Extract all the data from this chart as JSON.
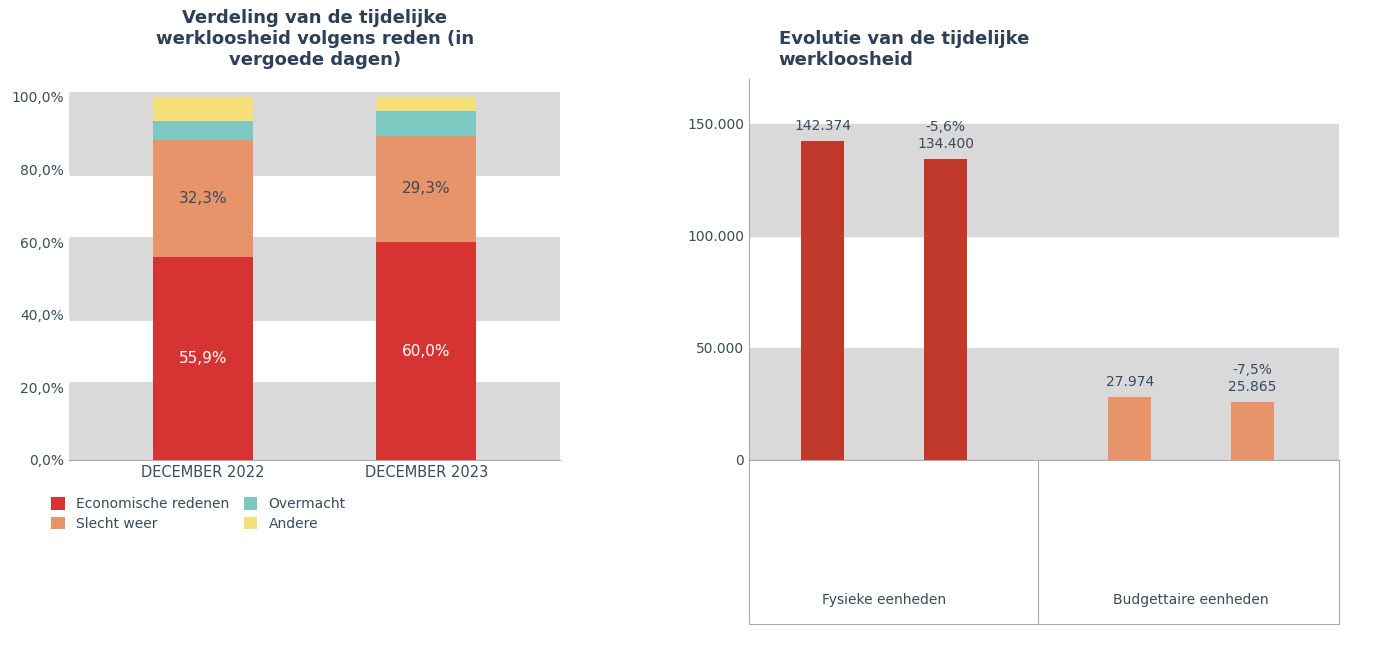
{
  "left_title": "Verdeling van de tijdelijke\nwerkloosheid volgens reden (in\nvergoede dagen)",
  "right_title": "Evolutie van de tijdelijke\nwerkloosheid",
  "categories": [
    "DECEMBER 2022",
    "DECEMBER 2023"
  ],
  "stacked_data": {
    "Economische redenen": [
      55.9,
      60.0
    ],
    "Slecht weer": [
      32.3,
      29.3
    ],
    "Overmacht": [
      5.2,
      6.8
    ],
    "Andere": [
      6.7,
      4.0
    ]
  },
  "stacked_colors": [
    "#d63333",
    "#e8946a",
    "#7ec8c2",
    "#f5e07a"
  ],
  "stacked_labels_pct": {
    "Economische redenen": [
      "55,9%",
      "60,0%"
    ],
    "Slecht weer": [
      "32,3%",
      "29,3%"
    ]
  },
  "bar_groups": {
    "Fysieke eenheden": {
      "values": [
        142374,
        134400
      ],
      "labels": [
        "142.374",
        "134.400"
      ],
      "color": "#c0392b",
      "pct_change": "-5,6%"
    },
    "Budgettaire eenheden": {
      "values": [
        27974,
        25865
      ],
      "labels": [
        "27.974",
        "25.865"
      ],
      "color": "#e8946a",
      "pct_change": "-7,5%"
    }
  },
  "right_yticks": [
    0,
    50000,
    100000,
    150000
  ],
  "right_ytick_labels": [
    "0",
    "50.000",
    "100.000",
    "150.000"
  ],
  "background_color": "#ffffff",
  "grid_color": "#d9d9d9",
  "text_color": "#3a4a5c",
  "title_color": "#2e4057"
}
